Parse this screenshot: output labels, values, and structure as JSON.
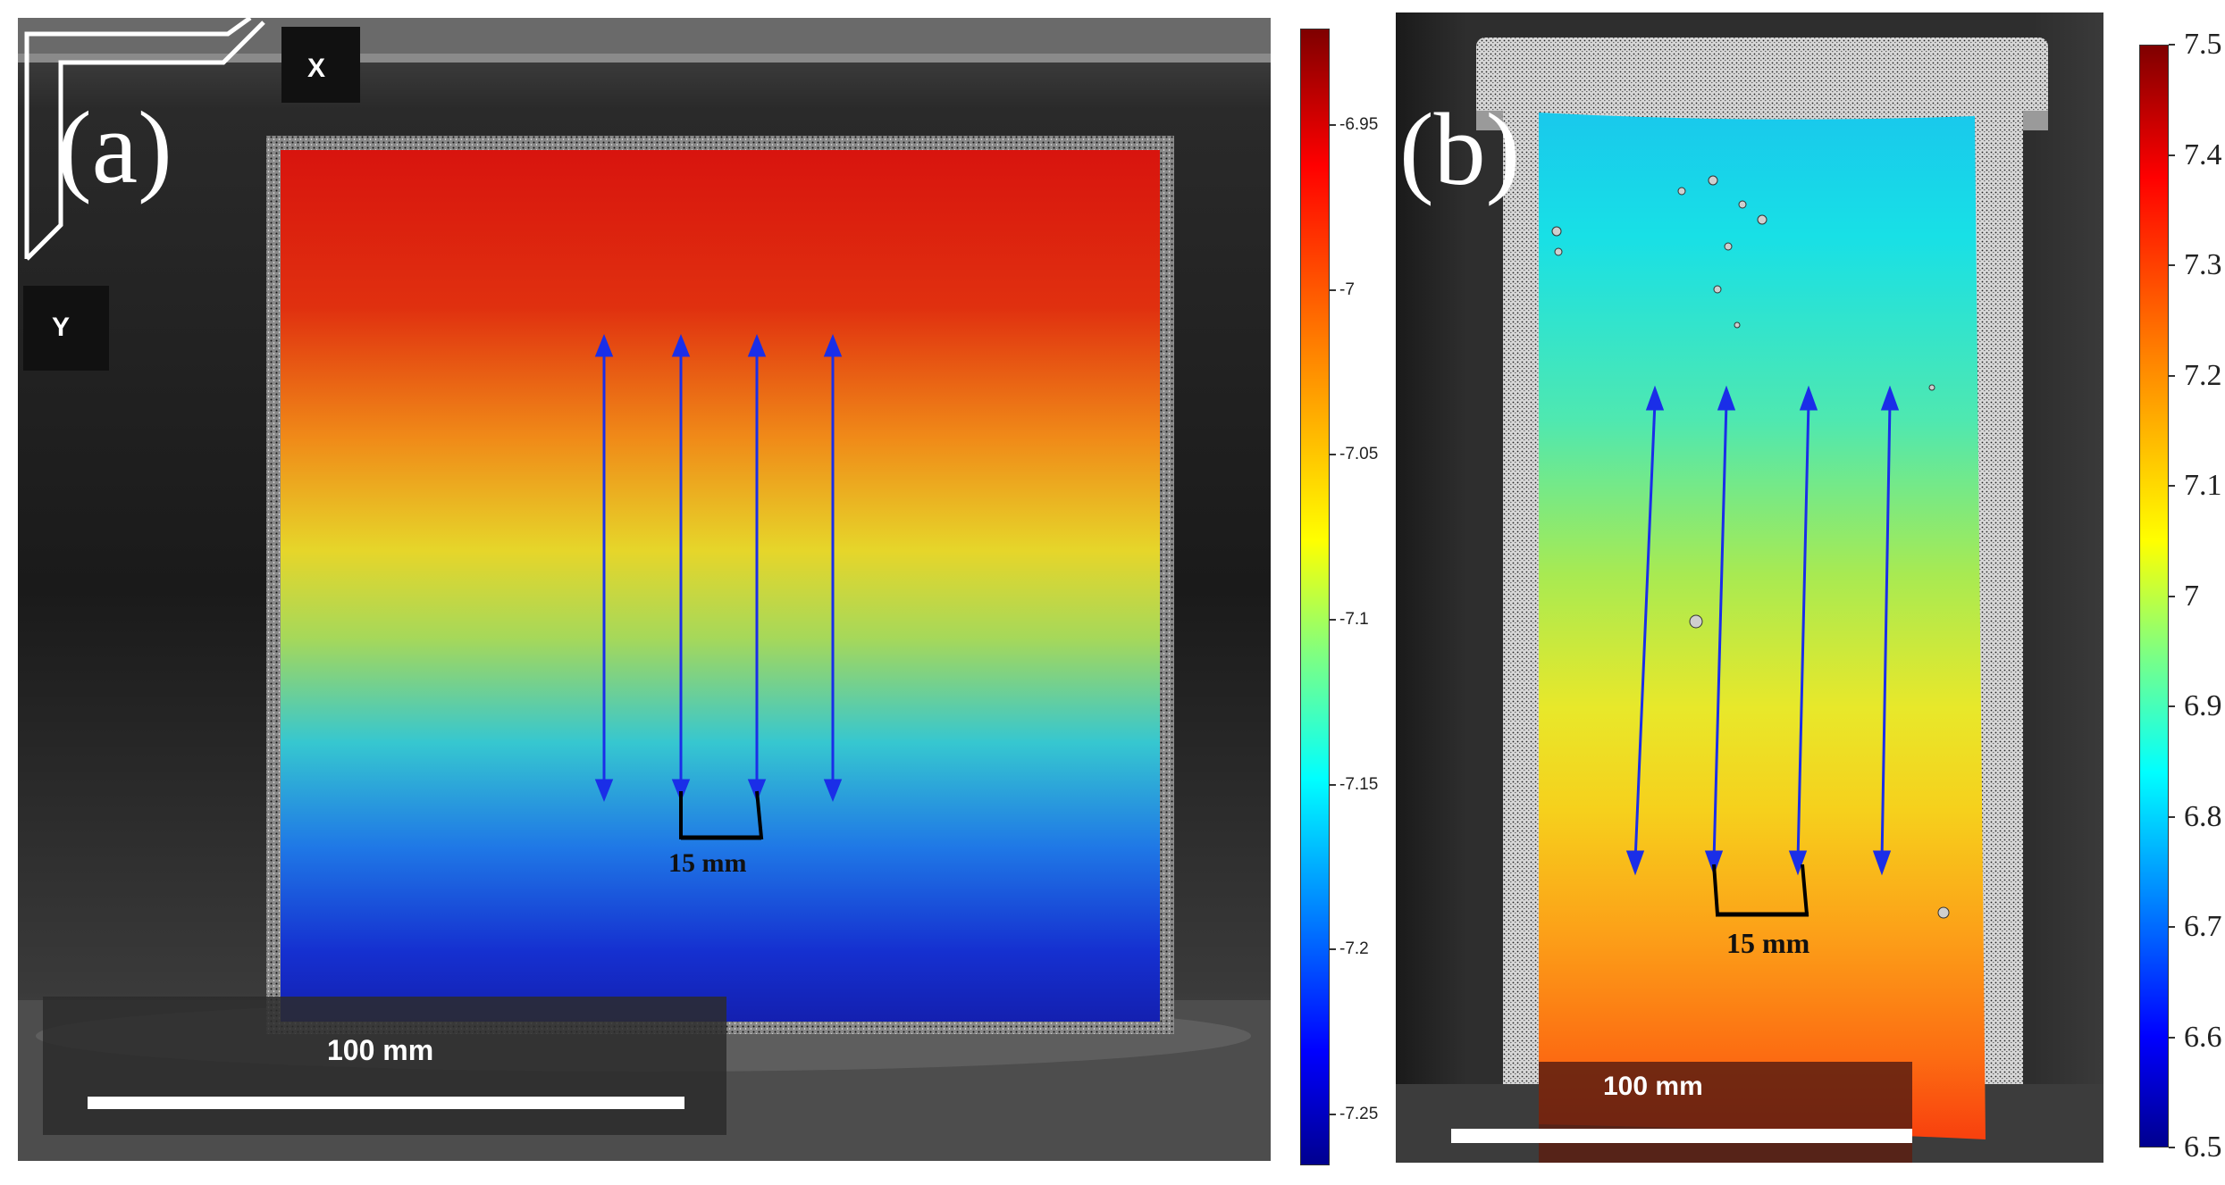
{
  "panel_a": {
    "label": "(a)",
    "axis_x": "X",
    "axis_y": "Y",
    "gauge_spacing": "15 mm",
    "scale_bar": "100 mm",
    "colorbar_ticks": [
      "-6.95",
      "-7",
      "-7.05",
      "-7.1",
      "-7.15",
      "-7.2",
      "-7.25"
    ]
  },
  "panel_b": {
    "label": "(b)",
    "gauge_spacing": "15 mm",
    "scale_bar": "100 mm",
    "colorbar_ticks": [
      "7.5",
      "7.4",
      "7.3",
      "7.2",
      "7.1",
      "7",
      "6.9",
      "6.8",
      "6.7",
      "6.6",
      "6.5"
    ]
  },
  "colors": {
    "arrow": "#1a2ee8",
    "colormap": [
      "#7f0000",
      "#ff0000",
      "#ff8000",
      "#ffff00",
      "#80ff80",
      "#00ffff",
      "#0080ff",
      "#0000ff",
      "#00008f"
    ]
  }
}
